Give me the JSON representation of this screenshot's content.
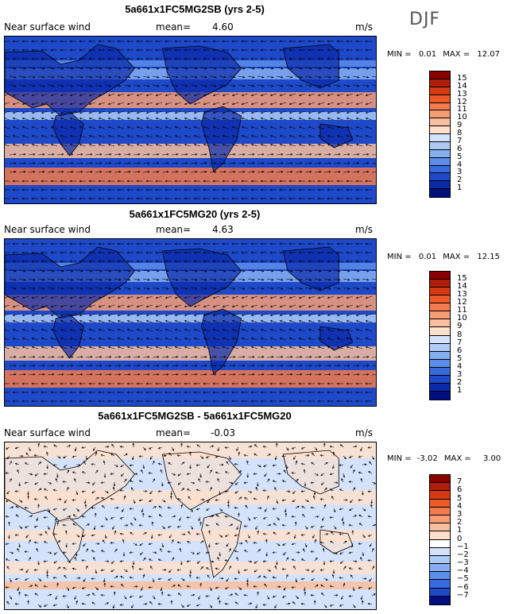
{
  "season": "DJF",
  "panels": [
    {
      "title": "5a661x1FC5MG2SB (yrs 2-5)",
      "variable": "Near surface wind",
      "mean_label": "mean=",
      "mean_value": "4.60",
      "units": "m/s",
      "min_label": "MIN =",
      "min_value": "0.01",
      "max_label": "MAX =",
      "max_value": "12.07",
      "colorbar_labels": [
        "15",
        "14",
        "13",
        "12",
        "11",
        "10",
        "9",
        "8",
        "7",
        "6",
        "5",
        "4",
        "3",
        "2",
        "1"
      ],
      "colorbar_colors": [
        "#8b0000",
        "#b01e0a",
        "#d63a13",
        "#ee5a2a",
        "#f47b4e",
        "#f79d76",
        "#f9bf9e",
        "#fde0cc",
        "#d4e3fb",
        "#aecbf7",
        "#86aef2",
        "#5d8dea",
        "#3a6bdc",
        "#1e49c8",
        "#0a2aa8",
        "#000f80"
      ]
    },
    {
      "title": "5a661x1FC5MG20 (yrs 2-5)",
      "variable": "Near surface wind",
      "mean_label": "mean=",
      "mean_value": "4.63",
      "units": "m/s",
      "min_label": "MIN =",
      "min_value": "0.01",
      "max_label": "MAX =",
      "max_value": "12.15",
      "colorbar_labels": [
        "15",
        "14",
        "13",
        "12",
        "11",
        "10",
        "9",
        "8",
        "7",
        "6",
        "5",
        "4",
        "3",
        "2",
        "1"
      ],
      "colorbar_colors": [
        "#8b0000",
        "#b01e0a",
        "#d63a13",
        "#ee5a2a",
        "#f47b4e",
        "#f79d76",
        "#f9bf9e",
        "#fde0cc",
        "#d4e3fb",
        "#aecbf7",
        "#86aef2",
        "#5d8dea",
        "#3a6bdc",
        "#1e49c8",
        "#0a2aa8",
        "#000f80"
      ]
    },
    {
      "title": "5a661x1FC5MG2SB - 5a661x1FC5MG20",
      "variable": "Near surface wind",
      "mean_label": "mean=",
      "mean_value": "-0.03",
      "units": "m/s",
      "min_label": "MIN =",
      "min_value": "-3.02",
      "max_label": "MAX =",
      "max_value": "3.00",
      "colorbar_labels": [
        "7",
        "6",
        "5",
        "4",
        "3",
        "2",
        "1",
        "0",
        "−1",
        "−2",
        "−3",
        "−4",
        "−5",
        "−6",
        "−7"
      ],
      "colorbar_colors": [
        "#8b0000",
        "#b01e0a",
        "#d63a13",
        "#ee5a2a",
        "#f47b4e",
        "#f79d76",
        "#f9bf9e",
        "#fde0cc",
        "#ffffff",
        "#d4e3fb",
        "#aecbf7",
        "#86aef2",
        "#5d8dea",
        "#3a6bdc",
        "#1e49c8",
        "#000f80"
      ]
    }
  ]
}
